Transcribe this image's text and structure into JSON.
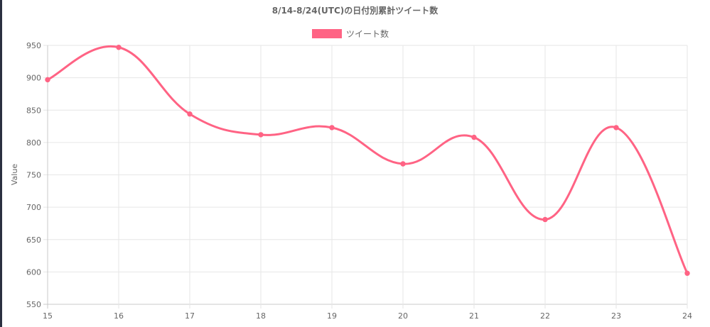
{
  "chart_data": {
    "type": "line",
    "title": "8/14-8/24(UTC)の日付別累計ツイート数",
    "xlabel": "",
    "ylabel": "Value",
    "x": [
      "15",
      "16",
      "17",
      "18",
      "19",
      "20",
      "21",
      "22",
      "23",
      "24"
    ],
    "series": [
      {
        "name": "ツイート数",
        "values": [
          897,
          947,
          844,
          812,
          823,
          767,
          808,
          681,
          823,
          598
        ],
        "color": "#ff6384"
      }
    ],
    "ylim": [
      550,
      950
    ],
    "yticks": [
      "950",
      "900",
      "850",
      "800",
      "750",
      "700",
      "650",
      "600",
      "550"
    ],
    "grid": true,
    "legend": "top-center",
    "smooth": true
  }
}
